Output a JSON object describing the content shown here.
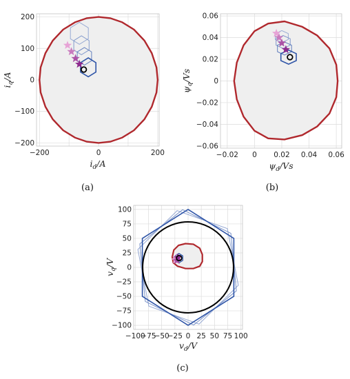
{
  "captions": {
    "a": "(a)",
    "b": "(b)",
    "c": "(c)"
  },
  "colors": {
    "limit": "#b0282d",
    "fill": "#efefef",
    "grid": "#dcdcdc",
    "hex_dark": "#2f55a8",
    "hex_light": "#a9b9dc",
    "star_dark": "#8e2a8e",
    "star_light": "#e7a3d6",
    "circle": "#000000"
  },
  "chart_data": [
    {
      "id": "a",
      "type": "scatter",
      "xlabel": "i_d/A",
      "ylabel": "i_q/A",
      "xlim": [
        -210,
        205
      ],
      "ylim": [
        -210,
        210
      ],
      "xticks": [
        -200,
        -100,
        0,
        100,
        200
      ],
      "yticks": [
        -200,
        -100,
        0,
        100,
        200
      ],
      "xticklabels": [
        "−200",
        "",
        "0",
        "",
        "200"
      ],
      "yticklabels": [
        "−200",
        "−100",
        "0",
        "100",
        "200"
      ],
      "grid": true,
      "limit_curve": [
        [
          0,
          200
        ],
        [
          40,
          196
        ],
        [
          80,
          183
        ],
        [
          120,
          160
        ],
        [
          155,
          125
        ],
        [
          180,
          85
        ],
        [
          196,
          40
        ],
        [
          200,
          0
        ],
        [
          196,
          -40
        ],
        [
          180,
          -85
        ],
        [
          155,
          -125
        ],
        [
          120,
          -160
        ],
        [
          80,
          -183
        ],
        [
          40,
          -196
        ],
        [
          0,
          -200
        ],
        [
          -40,
          -196
        ],
        [
          -80,
          -183
        ],
        [
          -120,
          -160
        ],
        [
          -155,
          -125
        ],
        [
          -180,
          -85
        ],
        [
          -196,
          -40
        ],
        [
          -200,
          0
        ],
        [
          -196,
          40
        ],
        [
          -180,
          85
        ],
        [
          -155,
          125
        ],
        [
          -120,
          160
        ],
        [
          -80,
          183
        ],
        [
          -40,
          196
        ]
      ],
      "stars": [
        [
          -105,
          110
        ],
        [
          -92,
          90
        ],
        [
          -78,
          68
        ],
        [
          -65,
          50
        ]
      ],
      "hexagons": [
        {
          "center": [
            -65,
            148
          ],
          "r": 35,
          "shade": 0.15
        },
        {
          "center": [
            -58,
            110
          ],
          "r": 30,
          "shade": 0.3
        },
        {
          "center": [
            -48,
            75
          ],
          "r": 28,
          "shade": 0.55
        },
        {
          "center": [
            -35,
            40
          ],
          "r": 30,
          "shade": 1.0
        }
      ],
      "current_point": [
        -50,
        33
      ]
    },
    {
      "id": "b",
      "type": "scatter",
      "xlabel": "ψ_d/Vs",
      "ylabel": "ψ_q/Vs",
      "xlim": [
        -0.025,
        0.064
      ],
      "ylim": [
        -0.062,
        0.062
      ],
      "xticks": [
        -0.02,
        0,
        0.02,
        0.04,
        0.06
      ],
      "yticks": [
        -0.06,
        -0.04,
        -0.02,
        0,
        0.02,
        0.04,
        0.06
      ],
      "xticklabels": [
        "−0.02",
        "0",
        "0.02",
        "0.04",
        "0.06"
      ],
      "yticklabels": [
        "−0.06",
        "−0.04",
        "−0.02",
        "0",
        "0.02",
        "0.04",
        "0.06"
      ],
      "grid": true,
      "limit_curve": [
        [
          0.022,
          0.055
        ],
        [
          0.035,
          0.05
        ],
        [
          0.046,
          0.042
        ],
        [
          0.055,
          0.03
        ],
        [
          0.06,
          0.015
        ],
        [
          0.061,
          0
        ],
        [
          0.06,
          -0.015
        ],
        [
          0.055,
          -0.03
        ],
        [
          0.046,
          -0.042
        ],
        [
          0.035,
          -0.05
        ],
        [
          0.022,
          -0.054
        ],
        [
          0.01,
          -0.053
        ],
        [
          0.0,
          -0.046
        ],
        [
          -0.008,
          -0.033
        ],
        [
          -0.013,
          -0.017
        ],
        [
          -0.015,
          0
        ],
        [
          -0.013,
          0.017
        ],
        [
          -0.008,
          0.033
        ],
        [
          0.0,
          0.046
        ],
        [
          0.01,
          0.053
        ]
      ],
      "stars": [
        [
          0.016,
          0.044
        ],
        [
          0.018,
          0.04
        ],
        [
          0.02,
          0.035
        ],
        [
          0.023,
          0.029
        ]
      ],
      "hexagons": [
        {
          "center": [
            0.02,
            0.041
          ],
          "r": 0.0055,
          "shade": 0.15
        },
        {
          "center": [
            0.021,
            0.036
          ],
          "r": 0.006,
          "shade": 0.35
        },
        {
          "center": [
            0.022,
            0.03
          ],
          "r": 0.006,
          "shade": 0.6
        },
        {
          "center": [
            0.025,
            0.022
          ],
          "r": 0.0065,
          "shade": 1.0
        }
      ],
      "current_point": [
        0.026,
        0.022
      ]
    },
    {
      "id": "c",
      "type": "scatter",
      "xlabel": "v_d/V",
      "ylabel": "v_q/V",
      "xlim": [
        -103,
        103
      ],
      "ylim": [
        -107,
        107
      ],
      "xticks": [
        -100,
        -75,
        -50,
        -25,
        0,
        25,
        50,
        75,
        100
      ],
      "yticks": [
        -100,
        -75,
        -50,
        -25,
        0,
        25,
        50,
        75,
        100
      ],
      "xticklabels": [
        "−100",
        "−75",
        "−50",
        "−25",
        "0",
        "25",
        "50",
        "75",
        "100"
      ],
      "yticklabels": [
        "−100",
        "−75",
        "−50",
        "−25",
        "0",
        "25",
        "50",
        "75",
        "100"
      ],
      "grid": true,
      "voltage_circle_radius": 86,
      "hexagons": [
        {
          "center": [
            0,
            0
          ],
          "r": 100,
          "rot": 12,
          "shade": 0.2
        },
        {
          "center": [
            0,
            0
          ],
          "r": 100,
          "rot": 6,
          "shade": 0.4
        },
        {
          "center": [
            0,
            0
          ],
          "r": 100,
          "rot": 0,
          "shade": 1.0
        }
      ],
      "limit_curve": [
        [
          -30,
          18
        ],
        [
          -27,
          30
        ],
        [
          -18,
          38
        ],
        [
          -5,
          41
        ],
        [
          10,
          40
        ],
        [
          22,
          33
        ],
        [
          27,
          22
        ],
        [
          27,
          10
        ],
        [
          22,
          2
        ],
        [
          10,
          -2
        ],
        [
          -5,
          -2
        ],
        [
          -20,
          2
        ],
        [
          -28,
          8
        ]
      ],
      "small_hexagons": [
        {
          "center": [
            -18,
            17
          ],
          "r": 7,
          "shade": 0.4
        },
        {
          "center": [
            -17,
            16
          ],
          "r": 8,
          "shade": 1.0
        }
      ],
      "stars": [
        [
          -24,
          13
        ],
        [
          -22,
          16
        ],
        [
          -21,
          12
        ],
        [
          -19,
          17
        ]
      ],
      "current_point": [
        -17,
        16
      ]
    }
  ]
}
